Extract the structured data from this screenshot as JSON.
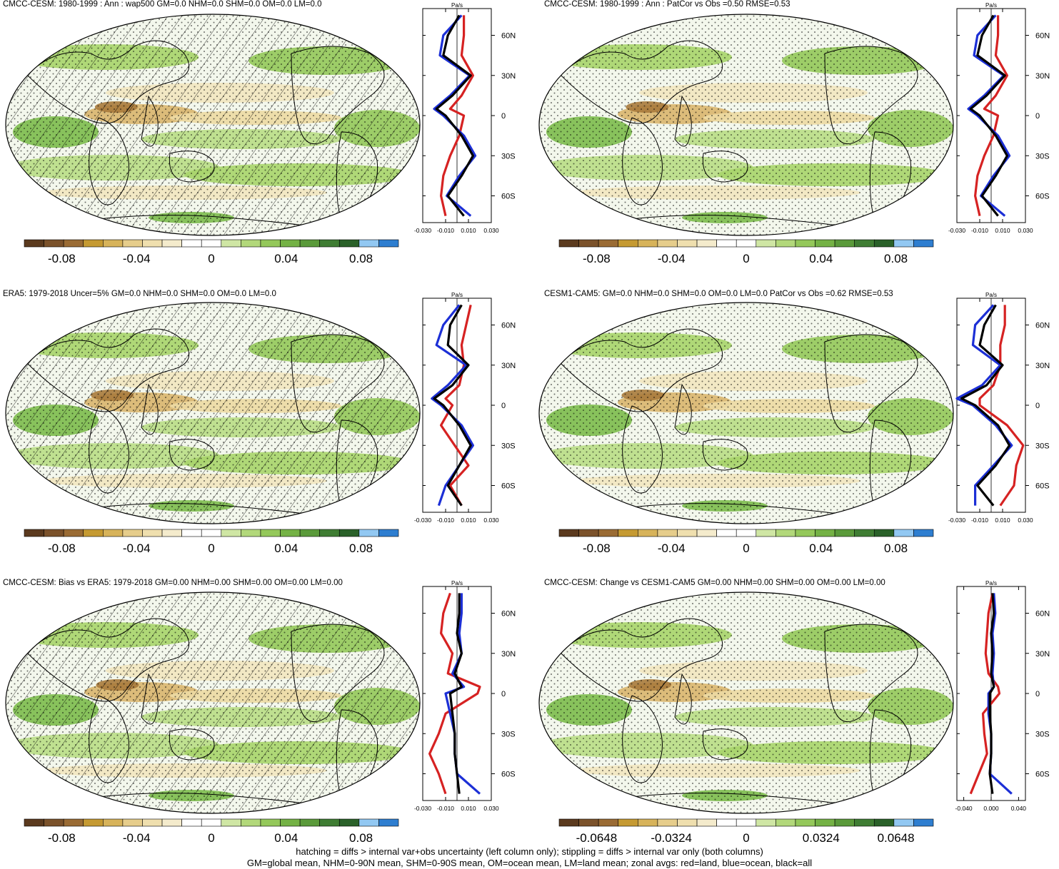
{
  "colors": {
    "palette": [
      "#5b3a1e",
      "#7b522b",
      "#9a6b34",
      "#c59a32",
      "#d7b35a",
      "#e6cd8b",
      "#efdfae",
      "#f4ebcc",
      "#ffffff",
      "#ffffff",
      "#cfe6a4",
      "#b2d87a",
      "#94c85a",
      "#74b245",
      "#5a9a3a",
      "#3f7d33",
      "#2a6129",
      "#92c8f2",
      "#2e7ed0"
    ],
    "land": "#d62222",
    "ocean": "#1c2fd6",
    "all": "#000000"
  },
  "panels": [
    {
      "id": "p1",
      "title": "CMCC-CESM: 1980-1999 : Ann : wap500 GM=0.0 NHM=0.0 SHM=0.0 OM=0.0 LM=0.0",
      "unit": "Pa/s",
      "zonal_ticks": [
        "-0.030",
        "-0.010",
        "0.010",
        "0.030"
      ],
      "colorbar_labels": [
        "-0.08",
        "-0.04",
        "0",
        "0.04",
        "0.08"
      ],
      "hatching": true
    },
    {
      "id": "p2",
      "title": "CMCC-CESM: 1980-1999 : Ann : PatCor vs Obs =0.50 RMSE=0.53",
      "unit": "Pa/s",
      "zonal_ticks": [
        "-0.030",
        "-0.010",
        "0.010",
        "0.030"
      ],
      "colorbar_labels": [
        "-0.08",
        "-0.04",
        "0",
        "0.04",
        "0.08"
      ],
      "hatching": false
    },
    {
      "id": "p3",
      "title": "ERA5: 1979-2018 Uncer=5% GM=0.0 NHM=0.0 SHM=0.0 OM=0.0 LM=0.0",
      "unit": "Pa/s",
      "zonal_ticks": [
        "-0.030",
        "-0.010",
        "0.010",
        "0.030"
      ],
      "colorbar_labels": [
        "-0.08",
        "-0.04",
        "0",
        "0.04",
        "0.08"
      ],
      "hatching": true
    },
    {
      "id": "p4",
      "title": "CESM1-CAM5: GM=0.0 NHM=0.0 SHM=0.0 OM=0.0 LM=0.0 PatCor vs Obs =0.62 RMSE=0.53",
      "unit": "Pa/s",
      "zonal_ticks": [
        "-0.030",
        "-0.010",
        "0.010",
        "0.030"
      ],
      "colorbar_labels": [
        "-0.08",
        "-0.04",
        "0",
        "0.04",
        "0.08"
      ],
      "hatching": false
    },
    {
      "id": "p5",
      "title": "CMCC-CESM: Bias vs ERA5: 1979-2018 GM=0.00 NHM=0.00 SHM=0.00 OM=0.00 LM=0.00",
      "unit": "Pa/s",
      "zonal_ticks": [
        "-0.030",
        "-0.010",
        "0.010",
        "0.030"
      ],
      "colorbar_labels": [
        "-0.08",
        "-0.04",
        "0",
        "0.04",
        "0.08"
      ],
      "hatching": true
    },
    {
      "id": "p6",
      "title": "CMCC-CESM: Change vs CESM1-CAM5 GM=0.00 NHM=0.00 SHM=0.00 OM=0.00 LM=0.00",
      "unit": "Pa/s",
      "zonal_ticks": [
        "-0.040",
        "0.000",
        "0.040"
      ],
      "colorbar_labels": [
        "-0.0648",
        "-0.0324",
        "0",
        "0.0324",
        "0.0648"
      ],
      "hatching": false
    }
  ],
  "lat_ticks": [
    "60N",
    "30N",
    "0",
    "30S",
    "60S"
  ],
  "footer": {
    "line1": "hatching = diffs > internal var+obs uncertainty (left column only); stippling = diffs > internal var only (both columns)",
    "line2": "GM=global mean, NHM=0-90N mean, SHM=0-90S mean, OM=ocean mean, LM=land mean; zonal avgs: red=land, blue=ocean, black=all"
  },
  "chart_data": [
    {
      "type": "heatmap",
      "title": "CMCC-CESM: 1980-1999 : Ann : wap500 GM=0.0 NHM=0.0 SHM=0.0 OM=0.0 LM=0.0",
      "colorbar_range": [
        -0.1,
        0.1
      ],
      "zonal_profile": {
        "unit": "Pa/s",
        "xlim": [
          -0.03,
          0.03
        ],
        "lat": [
          75,
          60,
          45,
          30,
          15,
          5,
          0,
          -15,
          -30,
          -45,
          -60,
          -75
        ],
        "series": [
          {
            "name": "all",
            "values": [
              0.002,
              -0.008,
              -0.012,
              0.012,
              -0.004,
              -0.018,
              -0.01,
              0.004,
              0.014,
              0.004,
              -0.008,
              0.006
            ]
          },
          {
            "name": "ocean",
            "values": [
              0.004,
              -0.012,
              -0.015,
              0.011,
              -0.006,
              -0.02,
              -0.012,
              0.006,
              0.016,
              0.002,
              -0.009,
              0.012
            ]
          },
          {
            "name": "land",
            "values": [
              0.006,
              0.006,
              0.004,
              0.014,
              0.004,
              -0.006,
              0.006,
              0.002,
              -0.006,
              -0.012,
              -0.014,
              -0.01
            ]
          }
        ]
      }
    },
    {
      "type": "heatmap",
      "title": "CMCC-CESM: 1980-1999 : Ann : PatCor vs Obs =0.50 RMSE=0.53",
      "colorbar_range": [
        -0.1,
        0.1
      ],
      "zonal_profile": {
        "unit": "Pa/s",
        "xlim": [
          -0.03,
          0.03
        ],
        "lat": [
          75,
          60,
          45,
          30,
          15,
          5,
          0,
          -15,
          -30,
          -45,
          -60,
          -75
        ],
        "series": [
          {
            "name": "all",
            "values": [
              0.002,
              -0.008,
              -0.012,
              0.012,
              -0.004,
              -0.018,
              -0.01,
              0.004,
              0.014,
              0.004,
              -0.008,
              0.006
            ]
          },
          {
            "name": "ocean",
            "values": [
              0.004,
              -0.012,
              -0.015,
              0.011,
              -0.006,
              -0.02,
              -0.012,
              0.006,
              0.016,
              0.002,
              -0.009,
              0.012
            ]
          },
          {
            "name": "land",
            "values": [
              0.006,
              0.006,
              0.004,
              0.014,
              0.004,
              -0.006,
              0.006,
              0.002,
              -0.006,
              -0.012,
              -0.014,
              -0.01
            ]
          }
        ]
      }
    },
    {
      "type": "heatmap",
      "title": "ERA5: 1979-2018 Uncer=5% GM=0.0 NHM=0.0 SHM=0.0 OM=0.0 LM=0.0",
      "colorbar_range": [
        -0.1,
        0.1
      ],
      "zonal_profile": {
        "unit": "Pa/s",
        "xlim": [
          -0.03,
          0.03
        ],
        "lat": [
          75,
          60,
          45,
          30,
          15,
          5,
          0,
          -15,
          -30,
          -45,
          -60,
          -75
        ],
        "series": [
          {
            "name": "all",
            "values": [
              0.004,
              -0.006,
              -0.008,
              0.01,
              -0.004,
              -0.02,
              -0.012,
              0.002,
              0.012,
              0.002,
              -0.008,
              0.004
            ]
          },
          {
            "name": "ocean",
            "values": [
              0.002,
              -0.012,
              -0.018,
              0.008,
              -0.008,
              -0.022,
              -0.014,
              0.004,
              0.014,
              0.002,
              -0.01,
              -0.016
            ]
          },
          {
            "name": "land",
            "values": [
              0.012,
              0.008,
              0.004,
              0.006,
              0.002,
              -0.01,
              -0.004,
              -0.014,
              -0.002,
              0.01,
              -0.006,
              0.004
            ]
          }
        ]
      }
    },
    {
      "type": "heatmap",
      "title": "CESM1-CAM5: GM=0.0 NHM=0.0 SHM=0.0 OM=0.0 LM=0.0 PatCor vs Obs =0.62 RMSE=0.53",
      "colorbar_range": [
        -0.1,
        0.1
      ],
      "zonal_profile": {
        "unit": "Pa/s",
        "xlim": [
          -0.03,
          0.03
        ],
        "lat": [
          75,
          60,
          45,
          30,
          15,
          5,
          0,
          -15,
          -30,
          -45,
          -60,
          -75
        ],
        "series": [
          {
            "name": "all",
            "values": [
              0.004,
              -0.006,
              -0.01,
              0.01,
              -0.004,
              -0.026,
              -0.014,
              0.006,
              0.016,
              0.004,
              -0.012,
              0.002
            ]
          },
          {
            "name": "ocean",
            "values": [
              0.002,
              -0.014,
              -0.016,
              0.008,
              -0.008,
              -0.03,
              -0.016,
              0.004,
              0.018,
              0.002,
              -0.014,
              -0.014
            ]
          },
          {
            "name": "land",
            "values": [
              0.012,
              0.012,
              0.008,
              0.008,
              0.002,
              -0.01,
              -0.01,
              0.014,
              0.028,
              0.022,
              0.02,
              0.008
            ]
          }
        ]
      }
    },
    {
      "type": "heatmap",
      "title": "CMCC-CESM: Bias vs ERA5: 1979-2018 GM=0.00 NHM=0.00 SHM=0.00 OM=0.00 LM=0.00",
      "colorbar_range": [
        -0.1,
        0.1
      ],
      "zonal_profile": {
        "unit": "Pa/s",
        "xlim": [
          -0.03,
          0.03
        ],
        "lat": [
          75,
          60,
          45,
          30,
          15,
          5,
          0,
          -15,
          -30,
          -45,
          -60,
          -75
        ],
        "series": [
          {
            "name": "all",
            "values": [
              0.002,
              0.002,
              0.0,
              0.004,
              -0.002,
              0.004,
              -0.006,
              -0.004,
              -0.002,
              -0.002,
              0.0,
              0.002
            ]
          },
          {
            "name": "ocean",
            "values": [
              0.004,
              0.004,
              0.002,
              0.004,
              -0.004,
              0.006,
              -0.01,
              -0.006,
              -0.002,
              -0.002,
              0.0,
              0.02
            ]
          },
          {
            "name": "land",
            "values": [
              -0.006,
              -0.012,
              -0.014,
              -0.004,
              -0.008,
              0.02,
              0.018,
              -0.01,
              -0.016,
              -0.024,
              -0.016,
              -0.01
            ]
          }
        ]
      }
    },
    {
      "type": "heatmap",
      "title": "CMCC-CESM: Change vs CESM1-CAM5 GM=0.00 NHM=0.00 SHM=0.00 OM=0.00 LM=0.00",
      "colorbar_range": [
        -0.081,
        0.081
      ],
      "zonal_profile": {
        "unit": "Pa/s",
        "xlim": [
          -0.05,
          0.05
        ],
        "lat": [
          75,
          60,
          45,
          30,
          15,
          5,
          0,
          -15,
          -30,
          -45,
          -60,
          -75
        ],
        "series": [
          {
            "name": "all",
            "values": [
              0.002,
              0.004,
              0.0,
              0.002,
              0.0,
              0.004,
              -0.002,
              -0.002,
              0.0,
              0.0,
              -0.002,
              0.002
            ]
          },
          {
            "name": "ocean",
            "values": [
              0.004,
              0.006,
              0.002,
              0.004,
              0.002,
              0.004,
              -0.004,
              -0.004,
              0.0,
              0.0,
              -0.002,
              0.03
            ]
          },
          {
            "name": "land",
            "values": [
              0.002,
              -0.004,
              -0.006,
              -0.008,
              -0.004,
              0.01,
              0.012,
              -0.012,
              -0.01,
              -0.006,
              -0.018,
              -0.03
            ]
          }
        ]
      }
    }
  ]
}
